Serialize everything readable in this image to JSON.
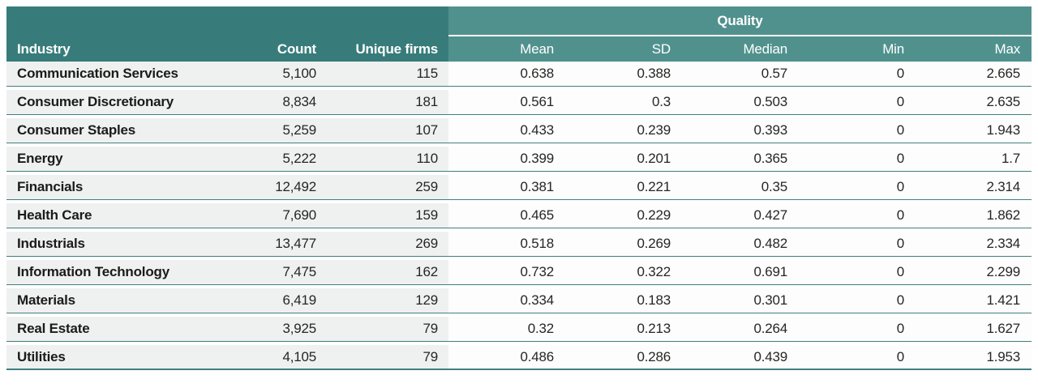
{
  "table": {
    "headers": {
      "industry": "Industry",
      "count": "Count",
      "unique_firms": "Unique firms",
      "quality_group": "Quality",
      "mean": "Mean",
      "sd": "SD",
      "median": "Median",
      "min": "Min",
      "max": "Max"
    },
    "rows": [
      {
        "industry": "Communication Services",
        "count": "5,100",
        "unique_firms": "115",
        "mean": "0.638",
        "sd": "0.388",
        "median": "0.57",
        "min": "0",
        "max": "2.665"
      },
      {
        "industry": "Consumer Discretionary",
        "count": "8,834",
        "unique_firms": "181",
        "mean": "0.561",
        "sd": "0.3",
        "median": "0.503",
        "min": "0",
        "max": "2.635"
      },
      {
        "industry": "Consumer Staples",
        "count": "5,259",
        "unique_firms": "107",
        "mean": "0.433",
        "sd": "0.239",
        "median": "0.393",
        "min": "0",
        "max": "1.943"
      },
      {
        "industry": "Energy",
        "count": "5,222",
        "unique_firms": "110",
        "mean": "0.399",
        "sd": "0.201",
        "median": "0.365",
        "min": "0",
        "max": "1.7"
      },
      {
        "industry": "Financials",
        "count": "12,492",
        "unique_firms": "259",
        "mean": "0.381",
        "sd": "0.221",
        "median": "0.35",
        "min": "0",
        "max": "2.314"
      },
      {
        "industry": "Health Care",
        "count": "7,690",
        "unique_firms": "159",
        "mean": "0.465",
        "sd": "0.229",
        "median": "0.427",
        "min": "0",
        "max": "1.862"
      },
      {
        "industry": "Industrials",
        "count": "13,477",
        "unique_firms": "269",
        "mean": "0.518",
        "sd": "0.269",
        "median": "0.482",
        "min": "0",
        "max": "2.334"
      },
      {
        "industry": "Information Technology",
        "count": "7,475",
        "unique_firms": "162",
        "mean": "0.732",
        "sd": "0.322",
        "median": "0.691",
        "min": "0",
        "max": "2.299"
      },
      {
        "industry": "Materials",
        "count": "6,419",
        "unique_firms": "129",
        "mean": "0.334",
        "sd": "0.183",
        "median": "0.301",
        "min": "0",
        "max": "1.421"
      },
      {
        "industry": "Real Estate",
        "count": "3,925",
        "unique_firms": "79",
        "mean": "0.32",
        "sd": "0.213",
        "median": "0.264",
        "min": "0",
        "max": "1.627"
      },
      {
        "industry": "Utilities",
        "count": "4,105",
        "unique_firms": "79",
        "mean": "0.486",
        "sd": "0.286",
        "median": "0.439",
        "min": "0",
        "max": "1.953"
      }
    ]
  },
  "colors": {
    "header_dark_teal": "#377C7A",
    "header_light_teal": "#50918D",
    "row_divider_teal": "#40807D",
    "left_cell_bg": "#EFF0F0",
    "quality_cell_bg": "#FDFDFD",
    "header_text": "#FFFFFF",
    "body_text": "#1D1D1B"
  },
  "chart_data": {
    "type": "table",
    "title": "",
    "column_groups": [
      {
        "label": "Quality",
        "columns": [
          "Mean",
          "SD",
          "Median",
          "Min",
          "Max"
        ]
      }
    ],
    "columns": [
      "Industry",
      "Count",
      "Unique firms",
      "Mean",
      "SD",
      "Median",
      "Min",
      "Max"
    ],
    "rows": [
      [
        "Communication Services",
        5100,
        115,
        0.638,
        0.388,
        0.57,
        0,
        2.665
      ],
      [
        "Consumer Discretionary",
        8834,
        181,
        0.561,
        0.3,
        0.503,
        0,
        2.635
      ],
      [
        "Consumer Staples",
        5259,
        107,
        0.433,
        0.239,
        0.393,
        0,
        1.943
      ],
      [
        "Energy",
        5222,
        110,
        0.399,
        0.201,
        0.365,
        0,
        1.7
      ],
      [
        "Financials",
        12492,
        259,
        0.381,
        0.221,
        0.35,
        0,
        2.314
      ],
      [
        "Health Care",
        7690,
        159,
        0.465,
        0.229,
        0.427,
        0,
        1.862
      ],
      [
        "Industrials",
        13477,
        269,
        0.518,
        0.269,
        0.482,
        0,
        2.334
      ],
      [
        "Information Technology",
        7475,
        162,
        0.732,
        0.322,
        0.691,
        0,
        2.299
      ],
      [
        "Materials",
        6419,
        129,
        0.334,
        0.183,
        0.301,
        0,
        1.421
      ],
      [
        "Real Estate",
        3925,
        79,
        0.32,
        0.213,
        0.264,
        0,
        1.627
      ],
      [
        "Utilities",
        4105,
        79,
        0.486,
        0.286,
        0.439,
        0,
        1.953
      ]
    ]
  }
}
